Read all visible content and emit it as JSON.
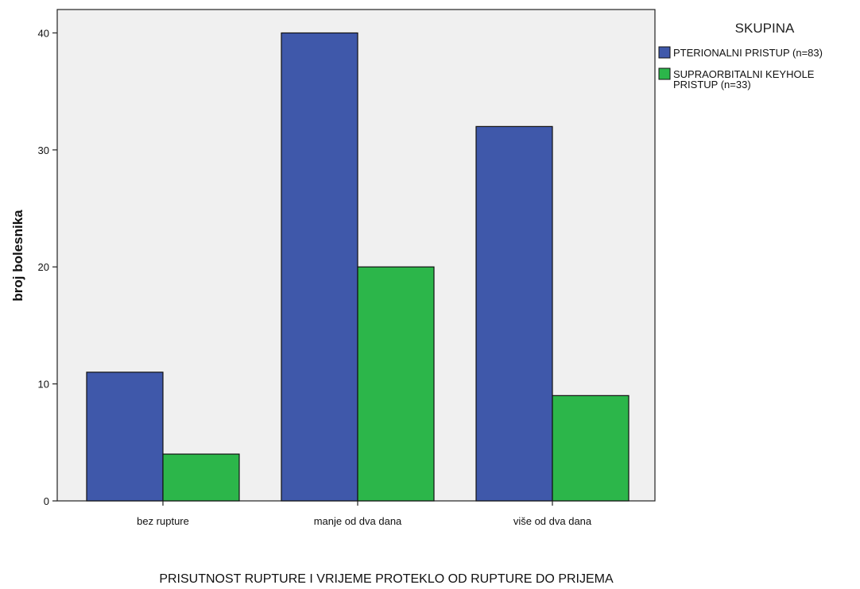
{
  "chart_data": {
    "type": "bar",
    "categories": [
      "bez rupture",
      "manje od dva dana",
      "više od dva dana"
    ],
    "series": [
      {
        "name": "PTERIONALNI PRISTUP (n=83)",
        "values": [
          11,
          40,
          32
        ],
        "color": "#3f58aa"
      },
      {
        "name": "SUPRAORBITALNI KEYHOLE PRISTUP (n=33)",
        "name_lines": [
          "SUPRAORBITALNI KEYHOLE",
          "PRISTUP (n=33)"
        ],
        "values": [
          4,
          20,
          9
        ],
        "color": "#2cb64a"
      }
    ],
    "title": "",
    "xlabel": "PRISUTNOST RUPTURE I VRIJEME PROTEKLO OD RUPTURE DO PRIJEMA",
    "ylabel": "broj bolesnika",
    "ylim": [
      0,
      42
    ],
    "yticks": [
      0,
      10,
      20,
      30,
      40
    ],
    "legend_title": "SKUPINA",
    "legend_position": "top-right",
    "plot_background": "#f0f0f0",
    "grid": false
  }
}
